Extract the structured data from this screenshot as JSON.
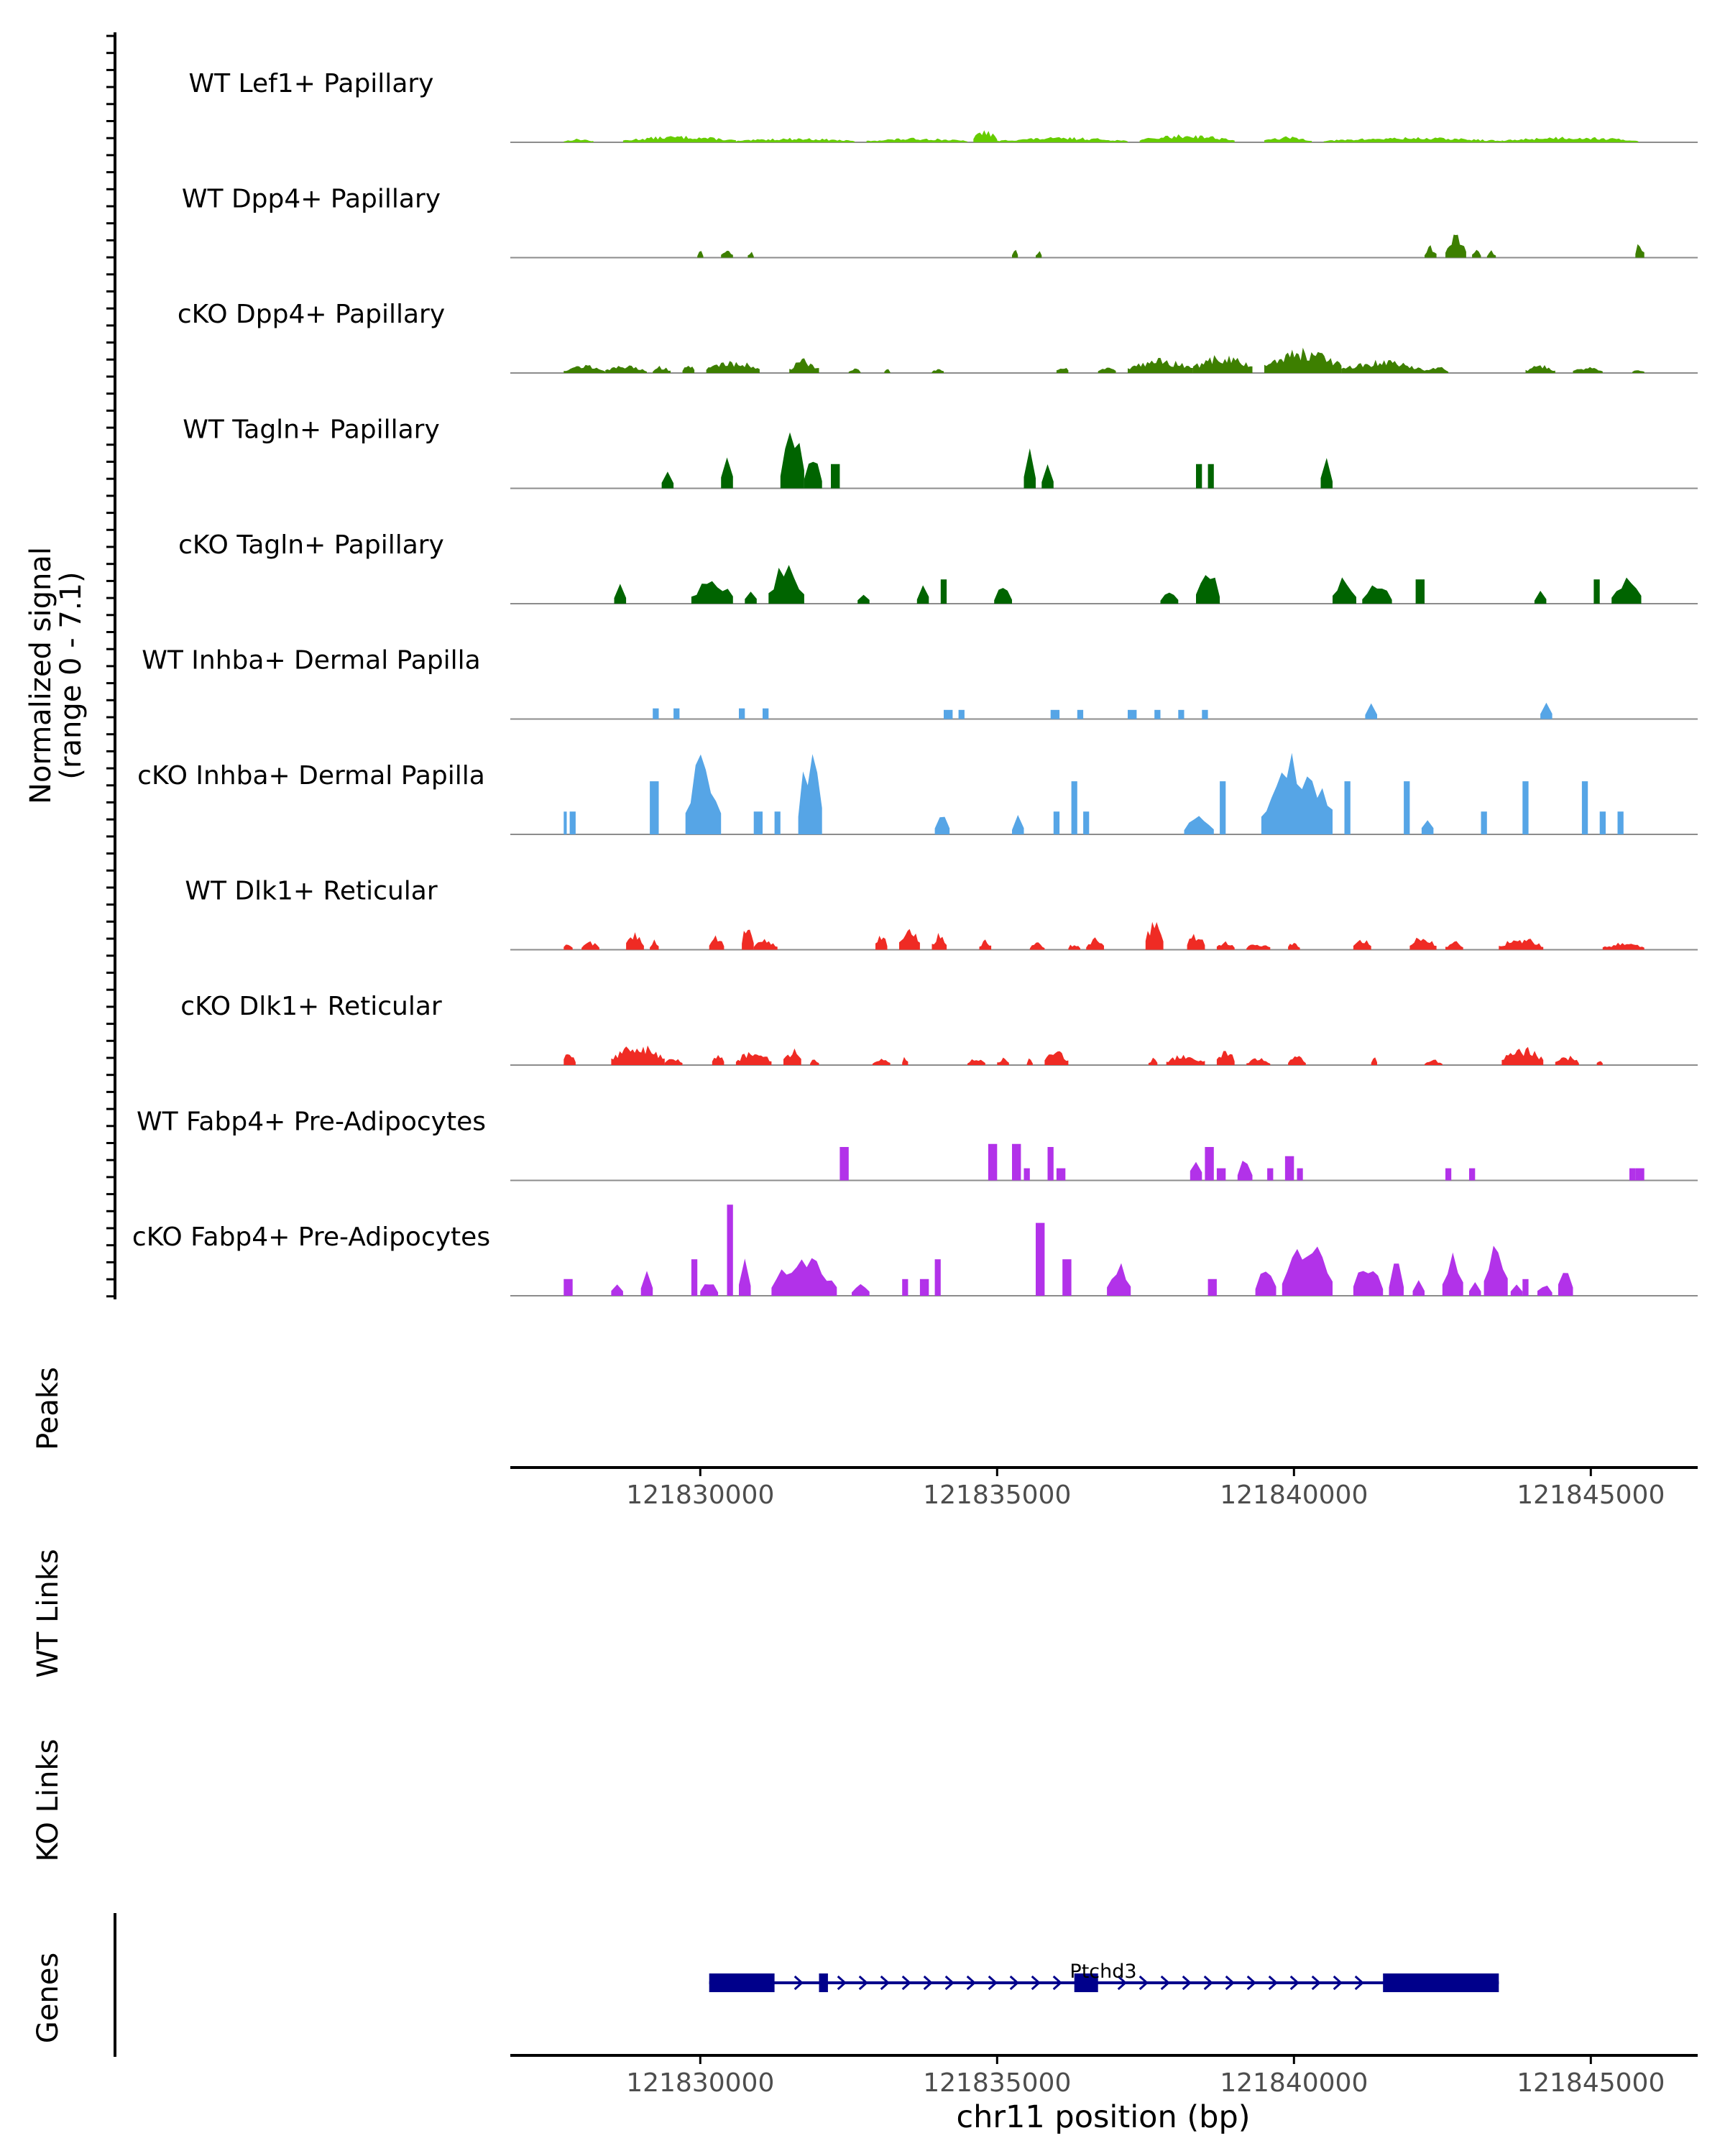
{
  "chart_data": {
    "type": "area",
    "title": "",
    "chromosome": "chr11",
    "xlabel": "chr11 position (bp)",
    "xlim": [
      121826800,
      121846800
    ],
    "xticks": [
      121830000,
      121835000,
      121840000,
      121845000
    ],
    "xtick_labels": [
      "121830000",
      "121835000",
      "121840000",
      "121845000"
    ],
    "signal_ylabel_line1": "Normalized signal",
    "signal_ylabel_line2": "(range 0 - 7.1)",
    "ylim": [
      0,
      7.1
    ],
    "tracks": [
      {
        "name": "WT Lef1+ Papillary",
        "color": "#66cc00",
        "style": "smooth",
        "regions": [
          [
            121827700,
            121828200,
            0.25
          ],
          [
            121828700,
            121830600,
            0.45
          ],
          [
            121830600,
            121832600,
            0.3
          ],
          [
            121832800,
            121834500,
            0.3
          ],
          [
            121834600,
            121835000,
            0.9
          ],
          [
            121835000,
            121837200,
            0.35
          ],
          [
            121837400,
            121839000,
            0.55
          ],
          [
            121839500,
            121840300,
            0.4
          ],
          [
            121840500,
            121843500,
            0.35
          ],
          [
            121843500,
            121845800,
            0.4
          ]
        ]
      },
      {
        "name": "WT Dpp4+ Papillary",
        "color": "#3d7f00",
        "style": "smooth",
        "regions": [
          [
            121829950,
            121830050,
            0.5
          ],
          [
            121830350,
            121830550,
            0.6
          ],
          [
            121830800,
            121830900,
            0.5
          ],
          [
            121835250,
            121835350,
            0.6
          ],
          [
            121835650,
            121835750,
            0.5
          ],
          [
            121842200,
            121842400,
            0.9
          ],
          [
            121842550,
            121842900,
            1.6
          ],
          [
            121843000,
            121843150,
            0.7
          ],
          [
            121843250,
            121843400,
            0.5
          ],
          [
            121845750,
            121845900,
            1.1
          ]
        ]
      },
      {
        "name": "cKO Dpp4+ Papillary",
        "color": "#3d7f00",
        "style": "smooth",
        "regions": [
          [
            121827700,
            121828400,
            0.6
          ],
          [
            121828400,
            121829100,
            0.55
          ],
          [
            121829200,
            121829500,
            0.5
          ],
          [
            121829700,
            121829900,
            0.7
          ],
          [
            121830100,
            121831000,
            0.9
          ],
          [
            121831500,
            121832000,
            1.0
          ],
          [
            121832500,
            121832700,
            0.35
          ],
          [
            121833100,
            121833200,
            0.3
          ],
          [
            121833900,
            121834100,
            0.35
          ],
          [
            121836000,
            121836200,
            0.6
          ],
          [
            121836700,
            121837000,
            0.4
          ],
          [
            121837200,
            121838300,
            1.0
          ],
          [
            121838300,
            121839300,
            1.3
          ],
          [
            121839500,
            121840800,
            1.8
          ],
          [
            121840800,
            121842200,
            0.9
          ],
          [
            121842200,
            121842600,
            0.5
          ],
          [
            121843900,
            121844400,
            0.6
          ],
          [
            121844700,
            121845200,
            0.45
          ],
          [
            121845700,
            121845900,
            0.3
          ]
        ]
      },
      {
        "name": "WT Tagln+ Papillary",
        "color": "#006400",
        "style": "blocky",
        "regions": [
          [
            121829350,
            121829550,
            1.6
          ],
          [
            121830350,
            121830550,
            3.0
          ],
          [
            121831350,
            121831750,
            4.5
          ],
          [
            121831750,
            121832050,
            2.5
          ],
          [
            121832200,
            121832350,
            1.6
          ],
          [
            121835450,
            121835650,
            3.0
          ],
          [
            121835750,
            121835950,
            1.6
          ],
          [
            121838350,
            121838450,
            1.6
          ],
          [
            121838550,
            121838650,
            1.6
          ],
          [
            121840450,
            121840650,
            2.5
          ]
        ]
      },
      {
        "name": "cKO Tagln+ Papillary",
        "color": "#006400",
        "style": "blocky",
        "regions": [
          [
            121828550,
            121828750,
            1.6
          ],
          [
            121829850,
            121830550,
            1.8
          ],
          [
            121830750,
            121830950,
            1.4
          ],
          [
            121831150,
            121831750,
            2.8
          ],
          [
            121832650,
            121832850,
            0.9
          ],
          [
            121833650,
            121833850,
            1.6
          ],
          [
            121834050,
            121834150,
            1.6
          ],
          [
            121834950,
            121835250,
            1.2
          ],
          [
            121837750,
            121838050,
            0.9
          ],
          [
            121838350,
            121838750,
            2.5
          ],
          [
            121840650,
            121841050,
            1.8
          ],
          [
            121841150,
            121841650,
            1.5
          ],
          [
            121842050,
            121842200,
            1.6
          ],
          [
            121844050,
            121844250,
            1.0
          ],
          [
            121845050,
            121845150,
            1.6
          ],
          [
            121845350,
            121845850,
            1.9
          ]
        ]
      },
      {
        "name": "WT Inhba+ Dermal Papilla",
        "color": "#56a5e6",
        "style": "blocky",
        "regions": [
          [
            121829200,
            121829300,
            0.7
          ],
          [
            121829550,
            121829650,
            0.7
          ],
          [
            121830650,
            121830750,
            0.7
          ],
          [
            121831050,
            121831150,
            0.7
          ],
          [
            121834100,
            121834250,
            0.6
          ],
          [
            121834350,
            121834450,
            0.6
          ],
          [
            121835900,
            121836050,
            0.6
          ],
          [
            121836350,
            121836450,
            0.6
          ],
          [
            121837200,
            121837350,
            0.6
          ],
          [
            121837650,
            121837750,
            0.6
          ],
          [
            121838050,
            121838150,
            0.6
          ],
          [
            121838450,
            121838550,
            0.6
          ],
          [
            121841200,
            121841400,
            1.1
          ],
          [
            121844150,
            121844350,
            1.2
          ]
        ]
      },
      {
        "name": "cKO Inhba+ Dermal Papilla",
        "color": "#56a5e6",
        "style": "blocky",
        "regions": [
          [
            121827700,
            121827750,
            1.5
          ],
          [
            121827800,
            121827900,
            1.5
          ],
          [
            121829150,
            121829300,
            3.5
          ],
          [
            121829750,
            121830350,
            5.5
          ],
          [
            121830900,
            121831050,
            1.5
          ],
          [
            121831250,
            121831350,
            1.5
          ],
          [
            121831650,
            121832050,
            6.0
          ],
          [
            121833950,
            121834200,
            1.5
          ],
          [
            121835250,
            121835450,
            1.5
          ],
          [
            121835950,
            121836050,
            1.5
          ],
          [
            121836250,
            121836350,
            3.5
          ],
          [
            121836450,
            121836550,
            1.5
          ],
          [
            121838150,
            121838650,
            1.5
          ],
          [
            121838750,
            121838850,
            3.5
          ],
          [
            121839450,
            121840650,
            5.5
          ],
          [
            121840850,
            121840950,
            3.5
          ],
          [
            121841850,
            121841950,
            3.5
          ],
          [
            121842150,
            121842350,
            1.5
          ],
          [
            121843150,
            121843250,
            1.5
          ],
          [
            121843850,
            121843950,
            3.5
          ],
          [
            121844850,
            121844950,
            3.5
          ],
          [
            121845150,
            121845250,
            1.5
          ],
          [
            121845450,
            121845550,
            1.5
          ]
        ]
      },
      {
        "name": "WT Dlk1+ Reticular",
        "color": "#ef2b24",
        "style": "smooth",
        "regions": [
          [
            121827700,
            121827850,
            0.6
          ],
          [
            121828000,
            121828300,
            0.6
          ],
          [
            121828750,
            121829050,
            1.4
          ],
          [
            121829150,
            121829300,
            0.7
          ],
          [
            121830150,
            121830400,
            1.0
          ],
          [
            121830700,
            121830900,
            2.0
          ],
          [
            121830900,
            121831300,
            0.8
          ],
          [
            121832950,
            121833150,
            1.2
          ],
          [
            121833350,
            121833700,
            1.5
          ],
          [
            121833900,
            121834150,
            1.2
          ],
          [
            121834700,
            121834900,
            0.8
          ],
          [
            121835550,
            121835800,
            0.5
          ],
          [
            121836200,
            121836400,
            0.5
          ],
          [
            121836500,
            121836800,
            0.9
          ],
          [
            121837500,
            121837800,
            2.2
          ],
          [
            121838200,
            121838500,
            1.3
          ],
          [
            121838700,
            121839000,
            0.6
          ],
          [
            121839200,
            121839600,
            0.5
          ],
          [
            121839900,
            121840100,
            0.6
          ],
          [
            121841000,
            121841300,
            0.9
          ],
          [
            121841950,
            121842400,
            1.0
          ],
          [
            121842550,
            121842850,
            0.6
          ],
          [
            121843450,
            121844200,
            0.9
          ],
          [
            121845200,
            121845900,
            0.5
          ]
        ]
      },
      {
        "name": "cKO Dlk1+ Reticular",
        "color": "#ef2b24",
        "style": "smooth",
        "regions": [
          [
            121827700,
            121827900,
            1.2
          ],
          [
            121828500,
            121829400,
            1.5
          ],
          [
            121829400,
            121829700,
            0.6
          ],
          [
            121830200,
            121830400,
            0.8
          ],
          [
            121830600,
            121831200,
            1.0
          ],
          [
            121831400,
            121831700,
            1.2
          ],
          [
            121831850,
            121832000,
            0.5
          ],
          [
            121832900,
            121833200,
            0.5
          ],
          [
            121833400,
            121833500,
            0.7
          ],
          [
            121834500,
            121834800,
            0.5
          ],
          [
            121835000,
            121835200,
            0.5
          ],
          [
            121835500,
            121835600,
            0.5
          ],
          [
            121835800,
            121836200,
            1.0
          ],
          [
            121837550,
            121837700,
            0.5
          ],
          [
            121837850,
            121838500,
            0.8
          ],
          [
            121838700,
            121839000,
            1.2
          ],
          [
            121839200,
            121839600,
            0.5
          ],
          [
            121839900,
            121840200,
            0.8
          ],
          [
            121841300,
            121841400,
            0.6
          ],
          [
            121842200,
            121842500,
            0.4
          ],
          [
            121843500,
            121844200,
            1.3
          ],
          [
            121844400,
            121844800,
            0.7
          ],
          [
            121845100,
            121845200,
            0.5
          ]
        ]
      },
      {
        "name": "WT Fabp4+ Pre-Adipocytes",
        "color": "#b232e9",
        "style": "blocky",
        "regions": [
          [
            121832350,
            121832500,
            2.2
          ],
          [
            121834850,
            121835000,
            2.4
          ],
          [
            121835250,
            121835400,
            2.4
          ],
          [
            121835450,
            121835550,
            0.8
          ],
          [
            121835850,
            121835950,
            2.2
          ],
          [
            121836000,
            121836150,
            0.8
          ],
          [
            121838250,
            121838450,
            2.2
          ],
          [
            121838500,
            121838650,
            2.2
          ],
          [
            121838700,
            121838850,
            0.8
          ],
          [
            121839050,
            121839300,
            1.6
          ],
          [
            121839550,
            121839650,
            0.8
          ],
          [
            121839850,
            121840000,
            1.6
          ],
          [
            121840050,
            121840150,
            0.8
          ],
          [
            121842550,
            121842650,
            0.8
          ],
          [
            121842950,
            121843050,
            0.8
          ],
          [
            121845650,
            121845750,
            0.8
          ],
          [
            121845750,
            121845900,
            0.8
          ]
        ]
      },
      {
        "name": "cKO Fabp4+ Pre-Adipocytes",
        "color": "#b232e9",
        "style": "blocky",
        "regions": [
          [
            121827700,
            121827850,
            1.1
          ],
          [
            121828500,
            121828700,
            1.1
          ],
          [
            121829000,
            121829200,
            2.1
          ],
          [
            121829850,
            121829950,
            2.4
          ],
          [
            121830000,
            121830300,
            1.1
          ],
          [
            121830450,
            121830550,
            6.0
          ],
          [
            121830650,
            121830850,
            2.5
          ],
          [
            121831200,
            121832300,
            2.8
          ],
          [
            121832550,
            121832850,
            1.1
          ],
          [
            121833400,
            121833500,
            1.1
          ],
          [
            121833700,
            121833850,
            1.1
          ],
          [
            121833950,
            121834050,
            2.4
          ],
          [
            121835650,
            121835800,
            4.8
          ],
          [
            121836100,
            121836250,
            2.4
          ],
          [
            121836850,
            121837250,
            2.4
          ],
          [
            121838550,
            121838700,
            1.1
          ],
          [
            121839350,
            121839700,
            2.3
          ],
          [
            121839800,
            121840650,
            3.8
          ],
          [
            121841000,
            121841500,
            2.5
          ],
          [
            121841600,
            121841850,
            2.4
          ],
          [
            121842000,
            121842200,
            1.1
          ],
          [
            121842500,
            121842850,
            3.0
          ],
          [
            121842950,
            121843150,
            1.1
          ],
          [
            121843200,
            121843600,
            4.0
          ],
          [
            121843650,
            121843850,
            1.1
          ],
          [
            121843850,
            121843950,
            1.1
          ],
          [
            121844100,
            121844350,
            1.1
          ],
          [
            121844450,
            121844700,
            2.5
          ]
        ]
      }
    ],
    "peaks_label": "Peaks",
    "wt_links_label": "WT Links",
    "ko_links_label": "KO Links",
    "genes_label": "Genes",
    "gene": {
      "name": "Ptchd3",
      "strand": "+",
      "color": "#00008b",
      "start": 121830150,
      "end": 121843450,
      "exons": [
        [
          121830150,
          121831250
        ],
        [
          121832000,
          121832150
        ],
        [
          121836300,
          121836700
        ],
        [
          121841500,
          121843450
        ]
      ]
    }
  }
}
